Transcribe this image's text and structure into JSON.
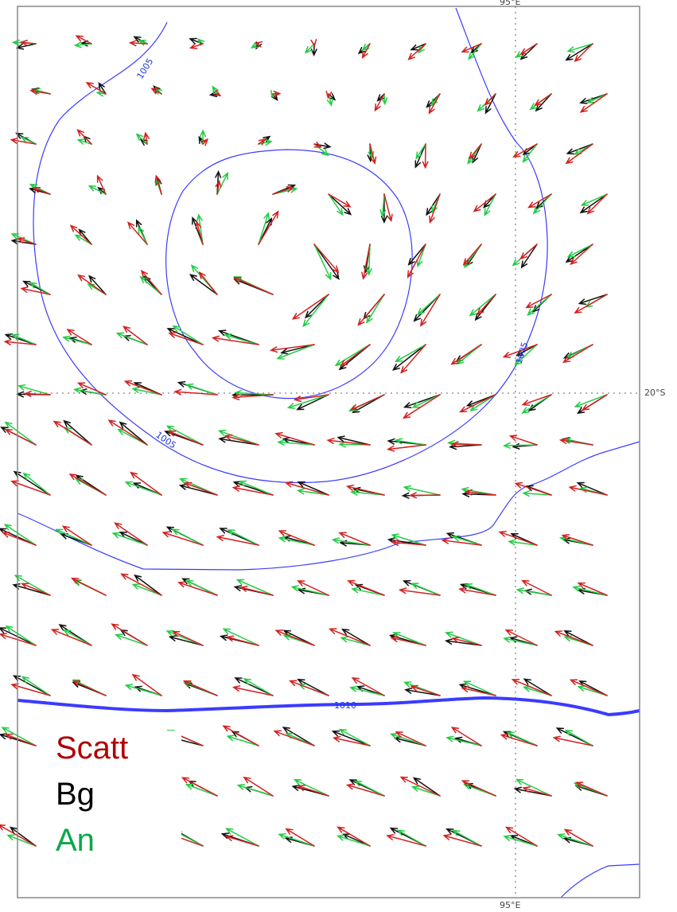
{
  "colors": {
    "scatt": "#d42020",
    "bg": "#111111",
    "an": "#22cc44",
    "isobar": "#3b3bff",
    "frame": "#888888",
    "gridline": "#999999"
  },
  "legend": {
    "items": [
      {
        "label": "Scatt",
        "color": "#b00000"
      },
      {
        "label": "Bg",
        "color": "#000000"
      },
      {
        "label": "An",
        "color": "#0aa84a"
      }
    ]
  },
  "axes": {
    "lat_label": "20°S",
    "lon_label_bottom": "95°E",
    "lon_label_top": "95°E"
  },
  "isobars": {
    "label_1005": "1005",
    "label_1010": "1010"
  }
}
